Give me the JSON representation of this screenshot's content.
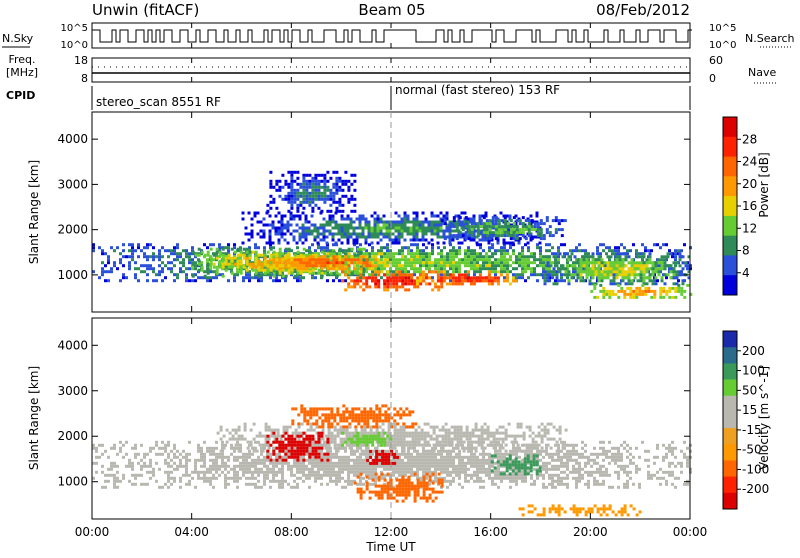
{
  "header": {
    "station": "Unwin (fitACF)",
    "beam": "Beam 05",
    "date": "08/Feb/2012"
  },
  "noise_panel": {
    "left_label": "N.Sky",
    "right_label": "N.Search",
    "left_ticks": [
      "10^5",
      "10^0"
    ],
    "right_ticks": [
      "10^5",
      "10^0"
    ]
  },
  "freq_panel": {
    "left_label_line1": "Freq.",
    "left_label_line2": "[MHz]",
    "right_label": "Nave",
    "left_ticks": [
      "18",
      "8"
    ],
    "right_ticks": [
      "60",
      "0"
    ]
  },
  "cpid_panel": {
    "label": "CPID",
    "segments": [
      {
        "text": "stereo_scan 8551 RF",
        "start_hour": 0
      },
      {
        "text": "normal (fast stereo) 153 RF",
        "start_hour": 12
      }
    ]
  },
  "colors": {
    "power": [
      "#0000dd",
      "#2a4fd8",
      "#2e8b57",
      "#66cc33",
      "#e8d000",
      "#ff9900",
      "#ff6600",
      "#ff2200",
      "#dd0000"
    ],
    "velocity": [
      "#dd0000",
      "#ff2200",
      "#ff6600",
      "#ff9900",
      "#f0a020",
      "#b8b8b0",
      "#b8b8b0",
      "#66cc33",
      "#3a9a5a",
      "#2a6a8a",
      "#1a2aaa"
    ],
    "groundscatter": "#b8b8b0"
  },
  "chart_data": [
    {
      "type": "heatmap",
      "name": "power",
      "xlabel": "",
      "ylabel": "Slant Range [km]",
      "colorbar_label": "Power [dB]",
      "colorbar_ticks": [
        "28",
        "24",
        "20",
        "16",
        "12",
        "8",
        "4"
      ],
      "x_range_hours": [
        0,
        24
      ],
      "ylim": [
        180,
        4600
      ],
      "yticks": [
        "4000",
        "3000",
        "2000",
        "1000"
      ],
      "ytick_values": [
        4000,
        3000,
        2000,
        1000
      ],
      "regions": [
        {
          "x": [
            0,
            24
          ],
          "y": [
            900,
            1700
          ],
          "value": 10
        },
        {
          "x": [
            4,
            11
          ],
          "y": [
            1000,
            1600
          ],
          "value": 16
        },
        {
          "x": [
            7,
            12
          ],
          "y": [
            1100,
            1500
          ],
          "value": 22
        },
        {
          "x": [
            10,
            14
          ],
          "y": [
            700,
            1100
          ],
          "value": 28
        },
        {
          "x": [
            13,
            17
          ],
          "y": [
            800,
            1100
          ],
          "value": 26
        },
        {
          "x": [
            6,
            18
          ],
          "y": [
            1700,
            2400
          ],
          "value": 6
        },
        {
          "x": [
            7,
            10.5
          ],
          "y": [
            2400,
            3300
          ],
          "value": 4
        },
        {
          "x": [
            14,
            19
          ],
          "y": [
            1800,
            2300
          ],
          "value": 8
        },
        {
          "x": [
            18,
            24
          ],
          "y": [
            800,
            1500
          ],
          "value": 12
        },
        {
          "x": [
            20,
            24
          ],
          "y": [
            500,
            800
          ],
          "value": 18
        }
      ]
    },
    {
      "type": "heatmap",
      "name": "velocity",
      "xlabel": "Time UT",
      "ylabel": "Slant Range [km]",
      "colorbar_label": "Velocity [m s^-1]",
      "colorbar_ticks": [
        "200",
        "100",
        "50",
        "15",
        "-15",
        "-50",
        "-100",
        "-200"
      ],
      "x_range_hours": [
        0,
        24
      ],
      "xticks": [
        "00:00",
        "04:00",
        "08:00",
        "12:00",
        "16:00",
        "20:00",
        "00:00"
      ],
      "xtick_hours": [
        0,
        4,
        8,
        12,
        16,
        20,
        24
      ],
      "ylim": [
        180,
        4600
      ],
      "yticks": [
        "4000",
        "3000",
        "2000",
        "1000"
      ],
      "ytick_values": [
        4000,
        3000,
        2000,
        1000
      ],
      "regions": [
        {
          "x": [
            0,
            24
          ],
          "y": [
            900,
            1900
          ],
          "value": 0
        },
        {
          "x": [
            5,
            19
          ],
          "y": [
            1700,
            2300
          ],
          "value": 0
        },
        {
          "x": [
            10.5,
            14
          ],
          "y": [
            600,
            1200
          ],
          "value": -60
        },
        {
          "x": [
            7,
            9.5
          ],
          "y": [
            1500,
            2100
          ],
          "value": -200
        },
        {
          "x": [
            11,
            12.5
          ],
          "y": [
            1400,
            1700
          ],
          "value": -210
        },
        {
          "x": [
            8,
            13
          ],
          "y": [
            2200,
            2700
          ],
          "value": -70
        },
        {
          "x": [
            10,
            12
          ],
          "y": [
            1800,
            2100
          ],
          "value": 40
        },
        {
          "x": [
            16,
            18
          ],
          "y": [
            1200,
            1600
          ],
          "value": 60
        },
        {
          "x": [
            17,
            22
          ],
          "y": [
            300,
            500
          ],
          "value": -40
        }
      ]
    }
  ]
}
